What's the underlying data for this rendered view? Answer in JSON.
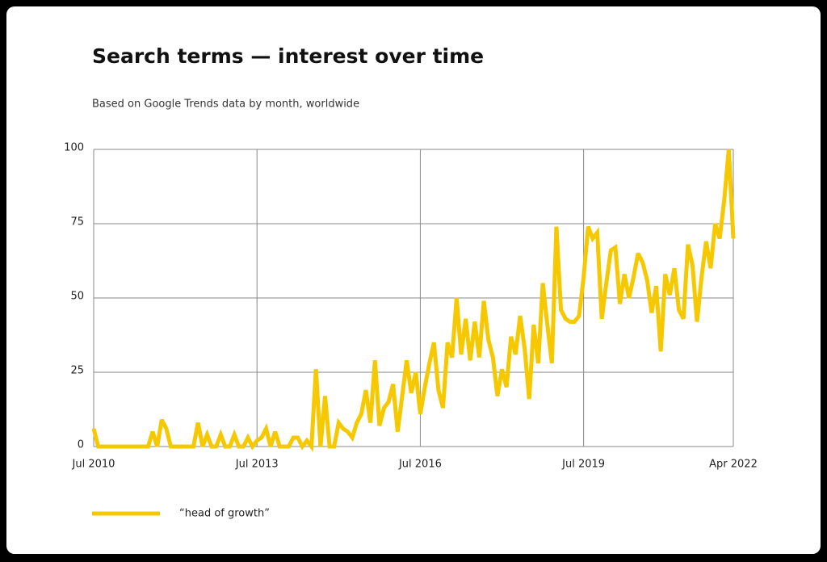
{
  "chart_data": {
    "type": "line",
    "title": "Search terms — interest over time",
    "subtitle": "Based on Google Trends data by month, worldwide",
    "x": [
      "2010-07",
      "2010-08",
      "2010-09",
      "2010-10",
      "2010-11",
      "2010-12",
      "2011-01",
      "2011-02",
      "2011-03",
      "2011-04",
      "2011-05",
      "2011-06",
      "2011-07",
      "2011-08",
      "2011-09",
      "2011-10",
      "2011-11",
      "2011-12",
      "2012-01",
      "2012-02",
      "2012-03",
      "2012-04",
      "2012-05",
      "2012-06",
      "2012-07",
      "2012-08",
      "2012-09",
      "2012-10",
      "2012-11",
      "2012-12",
      "2013-01",
      "2013-02",
      "2013-03",
      "2013-04",
      "2013-05",
      "2013-06",
      "2013-07",
      "2013-08",
      "2013-09",
      "2013-10",
      "2013-11",
      "2013-12",
      "2014-01",
      "2014-02",
      "2014-03",
      "2014-04",
      "2014-05",
      "2014-06",
      "2014-07",
      "2014-08",
      "2014-09",
      "2014-10",
      "2014-11",
      "2014-12",
      "2015-01",
      "2015-02",
      "2015-03",
      "2015-04",
      "2015-05",
      "2015-06",
      "2015-07",
      "2015-08",
      "2015-09",
      "2015-10",
      "2015-11",
      "2015-12",
      "2016-01",
      "2016-02",
      "2016-03",
      "2016-04",
      "2016-05",
      "2016-06",
      "2016-07",
      "2016-08",
      "2016-09",
      "2016-10",
      "2016-11",
      "2016-12",
      "2017-01",
      "2017-02",
      "2017-03",
      "2017-04",
      "2017-05",
      "2017-06",
      "2017-07",
      "2017-08",
      "2017-09",
      "2017-10",
      "2017-11",
      "2017-12",
      "2018-01",
      "2018-02",
      "2018-03",
      "2018-04",
      "2018-05",
      "2018-06",
      "2018-07",
      "2018-08",
      "2018-09",
      "2018-10",
      "2018-11",
      "2018-12",
      "2019-01",
      "2019-02",
      "2019-03",
      "2019-04",
      "2019-05",
      "2019-06",
      "2019-07",
      "2019-08",
      "2019-09",
      "2019-10",
      "2019-11",
      "2019-12",
      "2020-01",
      "2020-02",
      "2020-03",
      "2020-04",
      "2020-05",
      "2020-06",
      "2020-07",
      "2020-08",
      "2020-09",
      "2020-10",
      "2020-11",
      "2020-12",
      "2021-01",
      "2021-02",
      "2021-03",
      "2021-04",
      "2021-05",
      "2021-06",
      "2021-07",
      "2021-08",
      "2021-09",
      "2021-10",
      "2021-11",
      "2021-12",
      "2022-01",
      "2022-02",
      "2022-03",
      "2022-04"
    ],
    "series": [
      {
        "name": "“head of growth”",
        "color": "#f5c800",
        "values": [
          6,
          0,
          0,
          0,
          0,
          0,
          0,
          0,
          0,
          0,
          0,
          0,
          0,
          5,
          0,
          9,
          6,
          0,
          0,
          0,
          0,
          0,
          0,
          8,
          0,
          4,
          0,
          0,
          4,
          0,
          0,
          4,
          0,
          0,
          3,
          0,
          2,
          3,
          6,
          0,
          5,
          0,
          0,
          0,
          3,
          3,
          0,
          2,
          0,
          26,
          0,
          17,
          0,
          0,
          8,
          6,
          5,
          3,
          8,
          11,
          19,
          8,
          29,
          7,
          13,
          15,
          21,
          5,
          17,
          29,
          18,
          25,
          11,
          20,
          28,
          35,
          19,
          13,
          35,
          30,
          50,
          31,
          43,
          29,
          42,
          30,
          49,
          36,
          30,
          17,
          26,
          20,
          37,
          31,
          44,
          33,
          16,
          41,
          28,
          55,
          41,
          28,
          74,
          46,
          43,
          42,
          42,
          44,
          57,
          74,
          70,
          72,
          43,
          55,
          66,
          67,
          48,
          58,
          50,
          57,
          65,
          62,
          56,
          45,
          54,
          32,
          58,
          51,
          60,
          46,
          43,
          68,
          61,
          42,
          57,
          69,
          60,
          75,
          70,
          83,
          100,
          70
        ]
      }
    ],
    "xlim": [
      "2010-07",
      "2022-04"
    ],
    "xticks": [
      {
        "value": "2010-07",
        "label": "Jul 2010"
      },
      {
        "value": "2013-07",
        "label": "Jul 2013"
      },
      {
        "value": "2016-07",
        "label": "Jul 2016"
      },
      {
        "value": "2019-07",
        "label": "Jul 2019"
      },
      {
        "value": "2022-04",
        "label": "Apr 2022"
      }
    ],
    "ylim": [
      0,
      100
    ],
    "yticks": [
      0,
      25,
      50,
      75,
      100
    ],
    "grid": true,
    "legend": "bottom-left"
  }
}
